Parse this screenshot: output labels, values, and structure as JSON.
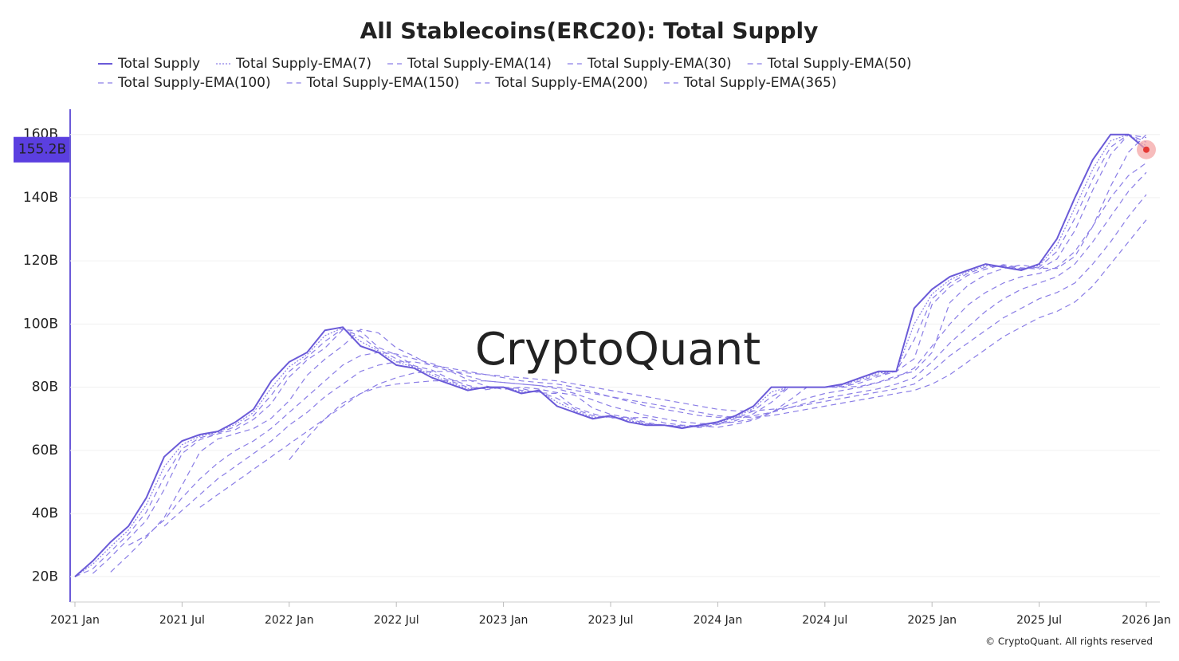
{
  "chart_data": {
    "type": "line",
    "title": "All Stablecoins(ERC20): Total Supply",
    "watermark": "CryptoQuant",
    "copyright": "© CryptoQuant. All rights reserved",
    "x": [
      "2021-01",
      "2021-02",
      "2021-03",
      "2021-04",
      "2021-05",
      "2021-06",
      "2021-07",
      "2021-08",
      "2021-09",
      "2021-10",
      "2021-11",
      "2021-12",
      "2022-01",
      "2022-02",
      "2022-03",
      "2022-04",
      "2022-05",
      "2022-06",
      "2022-07",
      "2022-08",
      "2022-09",
      "2022-10",
      "2022-11",
      "2022-12",
      "2023-01",
      "2023-02",
      "2023-03",
      "2023-04",
      "2023-05",
      "2023-06",
      "2023-07",
      "2023-08",
      "2023-09",
      "2023-10",
      "2023-11",
      "2023-12",
      "2024-01",
      "2024-02",
      "2024-03",
      "2024-04",
      "2024-05",
      "2024-06",
      "2024-07",
      "2024-08",
      "2024-09",
      "2024-10",
      "2024-11",
      "2024-12",
      "2025-01",
      "2025-02",
      "2025-03",
      "2025-04",
      "2025-05",
      "2025-06",
      "2025-07",
      "2025-08",
      "2025-09",
      "2025-10",
      "2025-11",
      "2025-12",
      "2026-01"
    ],
    "xlim": [
      "2021-01",
      "2026-01"
    ],
    "xticks": [
      {
        "value": "2021-01",
        "label": "2021 Jan"
      },
      {
        "value": "2021-07",
        "label": "2021 Jul"
      },
      {
        "value": "2022-01",
        "label": "2022 Jan"
      },
      {
        "value": "2022-07",
        "label": "2022 Jul"
      },
      {
        "value": "2023-01",
        "label": "2023 Jan"
      },
      {
        "value": "2023-07",
        "label": "2023 Jul"
      },
      {
        "value": "2024-01",
        "label": "2024 Jan"
      },
      {
        "value": "2024-07",
        "label": "2024 Jul"
      },
      {
        "value": "2025-01",
        "label": "2025 Jan"
      },
      {
        "value": "2025-07",
        "label": "2025 Jul"
      },
      {
        "value": "2026-01",
        "label": "2026 Jan"
      }
    ],
    "ylim": [
      12,
      168
    ],
    "yticks": [
      {
        "value": 20,
        "label": "20B"
      },
      {
        "value": 40,
        "label": "40B"
      },
      {
        "value": 60,
        "label": "60B"
      },
      {
        "value": 80,
        "label": "80B"
      },
      {
        "value": 100,
        "label": "100B"
      },
      {
        "value": 120,
        "label": "120B"
      },
      {
        "value": 140,
        "label": "140B"
      },
      {
        "value": 160,
        "label": "160B"
      }
    ],
    "grid": true,
    "series": [
      {
        "name": "Total Supply",
        "color": "#6a5ad8",
        "dash": "solid",
        "values": [
          20,
          25,
          31,
          36,
          45,
          58,
          63,
          65,
          66,
          69,
          73,
          82,
          88,
          91,
          98,
          99,
          93,
          91,
          87,
          86,
          83,
          81,
          79,
          80,
          80,
          78,
          79,
          74,
          72,
          70,
          71,
          69,
          68,
          68,
          67,
          68,
          69,
          71,
          74,
          80,
          80,
          80,
          80,
          81,
          83,
          85,
          85,
          105,
          111,
          115,
          117,
          119,
          118,
          117,
          119,
          127,
          140,
          152,
          160,
          160,
          155.2
        ],
        "value_labels": [
          null,
          null,
          null,
          null,
          null,
          null,
          null,
          null,
          null,
          null,
          null,
          null,
          null,
          null,
          null,
          null,
          null,
          null,
          null,
          null,
          null,
          null,
          null,
          null,
          null,
          null,
          null,
          null,
          null,
          null,
          null,
          null,
          null,
          null,
          null,
          null,
          null,
          null,
          null,
          null,
          null,
          null,
          null,
          null,
          null,
          null,
          null,
          null,
          null,
          null,
          null,
          null,
          null,
          null,
          null,
          null,
          null,
          null,
          null,
          null,
          "155.2B"
        ]
      },
      {
        "name": "Total Supply-EMA(7)",
        "color": "#8a7de6",
        "dash": "dotted",
        "values": [
          20,
          24,
          29.5,
          34.8,
          42.8,
          54.8,
          61.8,
          64.5,
          65.8,
          68.3,
          72,
          79.8,
          86.5,
          90.3,
          96.3,
          98.8,
          94.5,
          91.5,
          88,
          86.3,
          83.8,
          81.5,
          79.5,
          79.8,
          80,
          78.5,
          78.8,
          75.3,
          72.5,
          70.5,
          70.8,
          69.5,
          68.3,
          68,
          67.3,
          67.8,
          68.8,
          70.5,
          73.3,
          78.5,
          80,
          80,
          80,
          80.8,
          82.5,
          84.5,
          85,
          100,
          109.5,
          114,
          116.5,
          118.5,
          118.3,
          117.3,
          118.5,
          125,
          136.8,
          149,
          158,
          160,
          156.4
        ]
      },
      {
        "name": "Total Supply-EMA(14)",
        "color": "#8a7de6",
        "dash": "dashed",
        "values": [
          20,
          22.5,
          28,
          33.5,
          40.5,
          51.5,
          60.5,
          64,
          65.5,
          67.5,
          71,
          77.5,
          85,
          89.5,
          94.5,
          98.5,
          96,
          92,
          89,
          86.5,
          84.5,
          82,
          80,
          79.5,
          80,
          79,
          78.5,
          76.5,
          73,
          71,
          70.5,
          70,
          68.5,
          68,
          67.5,
          67.5,
          68.5,
          70,
          72.5,
          77,
          80,
          80,
          80,
          80.5,
          82,
          84,
          85,
          95,
          108,
          113,
          116,
          118,
          118.5,
          117.5,
          118,
          123,
          133.5,
          146,
          156,
          160,
          157.6
        ]
      },
      {
        "name": "Total Supply-EMA(30)",
        "color": "#8a7de6",
        "dash": "dashed",
        "values": [
          null,
          21,
          26.2,
          32,
          37.8,
          47.6,
          59,
          63.4,
          65.2,
          66.6,
          69.8,
          74.8,
          83.2,
          88.6,
          92.4,
          98.2,
          97.8,
          92.6,
          90.2,
          86.8,
          85.4,
          82.6,
          80.6,
          79.2,
          80,
          79.6,
          78.2,
          78,
          73.6,
          71.6,
          70.2,
          70.6,
          68.8,
          68,
          67.8,
          67.2,
          68.2,
          69.4,
          71.6,
          75.2,
          80,
          80,
          80,
          80.2,
          81.4,
          83.4,
          85,
          89,
          106.2,
          111.8,
          115.4,
          117.4,
          118.8,
          117.8,
          117.4,
          120.6,
          129.6,
          142.4,
          153.6,
          160,
          159
        ]
      },
      {
        "name": "Total Supply-EMA(50)",
        "color": "#8a7de6",
        "dash": "dashed",
        "values": [
          null,
          null,
          21.5,
          26.8,
          32.5,
          38.7,
          48.9,
          59.5,
          63.6,
          65.3,
          66.9,
          70.2,
          75.7,
          83.8,
          88.9,
          93.1,
          98.3,
          97.2,
          92.4,
          89.8,
          86.7,
          85.1,
          82.4,
          80.4,
          79.3,
          80,
          79.4,
          78.3,
          77.5,
          73.4,
          71.4,
          70.3,
          70.4,
          68.7,
          68,
          67.7,
          67.3,
          68.3,
          69.6,
          71.9,
          75.8,
          80,
          80,
          80,
          80.3,
          81.6,
          83.6,
          85,
          91,
          106.8,
          112.2,
          115.6,
          117.6,
          118.7,
          117.7,
          117.6,
          121.4,
          130.9,
          143.6,
          154.4,
          160
        ]
      },
      {
        "name": "Total Supply-EMA(100)",
        "color": "#8a7de6",
        "dash": "dashed",
        "values": [
          null,
          null,
          null,
          30,
          33,
          38,
          45,
          51,
          56,
          60,
          63,
          67,
          72,
          77,
          82,
          87,
          90,
          91,
          90.5,
          89,
          87.5,
          85.5,
          83.5,
          82,
          81.5,
          81,
          80.5,
          79.5,
          78,
          76,
          74,
          72.5,
          71,
          70,
          69,
          68.5,
          68.5,
          69,
          70,
          72,
          74.5,
          76.5,
          78,
          79,
          80,
          81.5,
          83,
          86,
          93,
          100,
          106,
          110,
          113,
          115,
          116,
          118,
          123,
          131,
          140,
          147,
          151
        ]
      },
      {
        "name": "Total Supply-EMA(150)",
        "color": "#8a7de6",
        "dash": "dashed",
        "values": [
          null,
          null,
          null,
          null,
          null,
          36,
          41,
          46,
          51,
          55,
          59,
          63,
          68,
          72,
          77,
          81,
          85,
          87,
          88,
          88,
          87,
          86,
          85,
          84,
          83,
          82,
          81.5,
          81,
          80,
          78.5,
          77,
          75.5,
          74,
          73,
          72,
          71,
          70.5,
          70.5,
          71,
          72,
          73.5,
          75,
          76.5,
          77.5,
          78.5,
          79.5,
          81,
          83,
          88,
          94,
          99,
          104,
          108,
          111,
          113,
          115,
          119,
          126,
          134,
          142,
          148
        ]
      },
      {
        "name": "Total Supply-EMA(200)",
        "color": "#8a7de6",
        "dash": "dashed",
        "values": [
          null,
          null,
          null,
          null,
          null,
          null,
          null,
          42,
          46,
          50,
          54,
          58,
          62,
          66,
          70,
          74,
          78,
          81,
          83,
          84.5,
          85,
          85,
          84.5,
          84,
          83.5,
          83,
          82.5,
          82,
          81,
          80,
          79,
          78,
          77,
          76,
          75,
          74,
          73,
          72.5,
          72.5,
          73,
          73.5,
          74.5,
          75.5,
          76.5,
          77.5,
          78.5,
          79.5,
          81,
          85,
          90,
          94,
          98,
          102,
          105,
          108,
          110,
          113,
          119,
          126,
          134,
          141
        ]
      },
      {
        "name": "Total Supply-EMA(365)",
        "color": "#8a7de6",
        "dash": "dashed",
        "values": [
          null,
          null,
          null,
          null,
          null,
          null,
          null,
          null,
          null,
          null,
          null,
          null,
          57,
          64,
          70,
          75,
          78,
          80,
          81,
          81.5,
          82,
          82,
          82,
          82,
          81.5,
          81,
          80.5,
          80,
          79,
          78,
          77,
          76,
          75,
          74,
          73,
          72,
          71,
          70.5,
          70.5,
          71,
          72,
          73,
          74,
          75,
          76,
          77,
          78,
          79,
          81,
          84,
          88,
          92,
          96,
          99,
          102,
          104,
          107,
          112,
          119,
          126,
          133
        ]
      }
    ]
  }
}
